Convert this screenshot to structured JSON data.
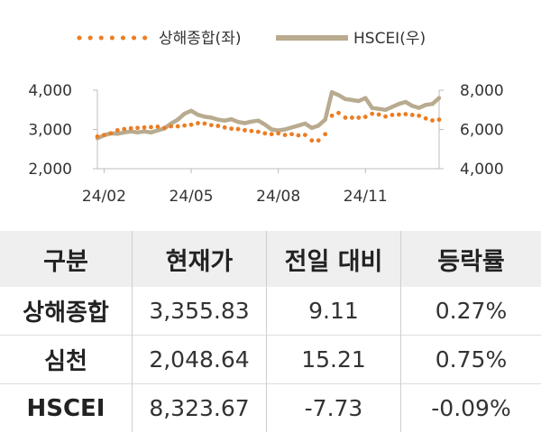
{
  "chart_data": {
    "type": "line",
    "legend": {
      "placement": "top"
    },
    "x_ticks": [
      "24/02",
      "24/05",
      "24/08",
      "24/11"
    ],
    "y_left": {
      "ylim": [
        2000,
        4000
      ],
      "ticks": [
        "2,000",
        "3,000",
        "4,000"
      ]
    },
    "y_right": {
      "ylim": [
        4000,
        8000
      ],
      "ticks": [
        "4,000",
        "6,000",
        "8,000"
      ]
    },
    "x": [
      "24/01/25",
      "24/02/01",
      "24/02/08",
      "24/02/15",
      "24/02/22",
      "24/03/01",
      "24/03/08",
      "24/03/15",
      "24/03/22",
      "24/03/29",
      "24/04/05",
      "24/04/12",
      "24/04/19",
      "24/04/26",
      "24/05/03",
      "24/05/10",
      "24/05/17",
      "24/05/24",
      "24/05/31",
      "24/06/07",
      "24/06/14",
      "24/06/21",
      "24/06/28",
      "24/07/05",
      "24/07/12",
      "24/07/19",
      "24/07/26",
      "24/08/02",
      "24/08/09",
      "24/08/16",
      "24/08/23",
      "24/08/30",
      "24/09/06",
      "24/09/13",
      "24/09/20",
      "24/09/27",
      "24/10/04",
      "24/10/11",
      "24/10/18",
      "24/10/25",
      "24/11/01",
      "24/11/08",
      "24/11/15",
      "24/11/22",
      "24/11/29",
      "24/12/06",
      "24/12/13",
      "24/12/20",
      "24/12/27",
      "25/01/03",
      "25/01/10",
      "25/01/17"
    ],
    "series": [
      {
        "name": "상해종합(좌)",
        "axis": "left",
        "style": "dotted",
        "color": "#ec7d23",
        "values": [
          2820,
          2860,
          2900,
          2980,
          3010,
          3030,
          3040,
          3050,
          3060,
          3070,
          3040,
          3080,
          3080,
          3100,
          3120,
          3160,
          3150,
          3110,
          3090,
          3050,
          3020,
          3010,
          2980,
          2960,
          2940,
          2900,
          2880,
          2900,
          2860,
          2880,
          2850,
          2860,
          2720,
          2720,
          2880,
          3350,
          3420,
          3300,
          3300,
          3300,
          3320,
          3400,
          3380,
          3330,
          3370,
          3380,
          3390,
          3370,
          3350,
          3280,
          3230,
          3250
        ]
      },
      {
        "name": "HSCEI(우)",
        "axis": "right",
        "style": "solid",
        "color": "#b8ab8f",
        "values": [
          5550,
          5700,
          5800,
          5780,
          5850,
          5900,
          5850,
          5900,
          5850,
          5950,
          6050,
          6300,
          6500,
          6800,
          6950,
          6750,
          6650,
          6600,
          6500,
          6450,
          6520,
          6380,
          6320,
          6400,
          6450,
          6250,
          6000,
          5950,
          6000,
          6100,
          6200,
          6300,
          6080,
          6200,
          6500,
          7900,
          7750,
          7550,
          7500,
          7450,
          7600,
          7100,
          7050,
          7000,
          7150,
          7300,
          7400,
          7200,
          7100,
          7250,
          7300,
          7600
        ]
      }
    ]
  },
  "table": {
    "headers": [
      "구분",
      "현재가",
      "전일 대비",
      "등락률"
    ],
    "rows": [
      {
        "name": "상해종합",
        "price": "3,355.83",
        "change": "9.11",
        "rate": "0.27%"
      },
      {
        "name": "심천",
        "price": "2,048.64",
        "change": "15.21",
        "rate": "0.75%"
      },
      {
        "name": "HSCEI",
        "price": "8,323.67",
        "change": "-7.73",
        "rate": "-0.09%"
      }
    ]
  }
}
